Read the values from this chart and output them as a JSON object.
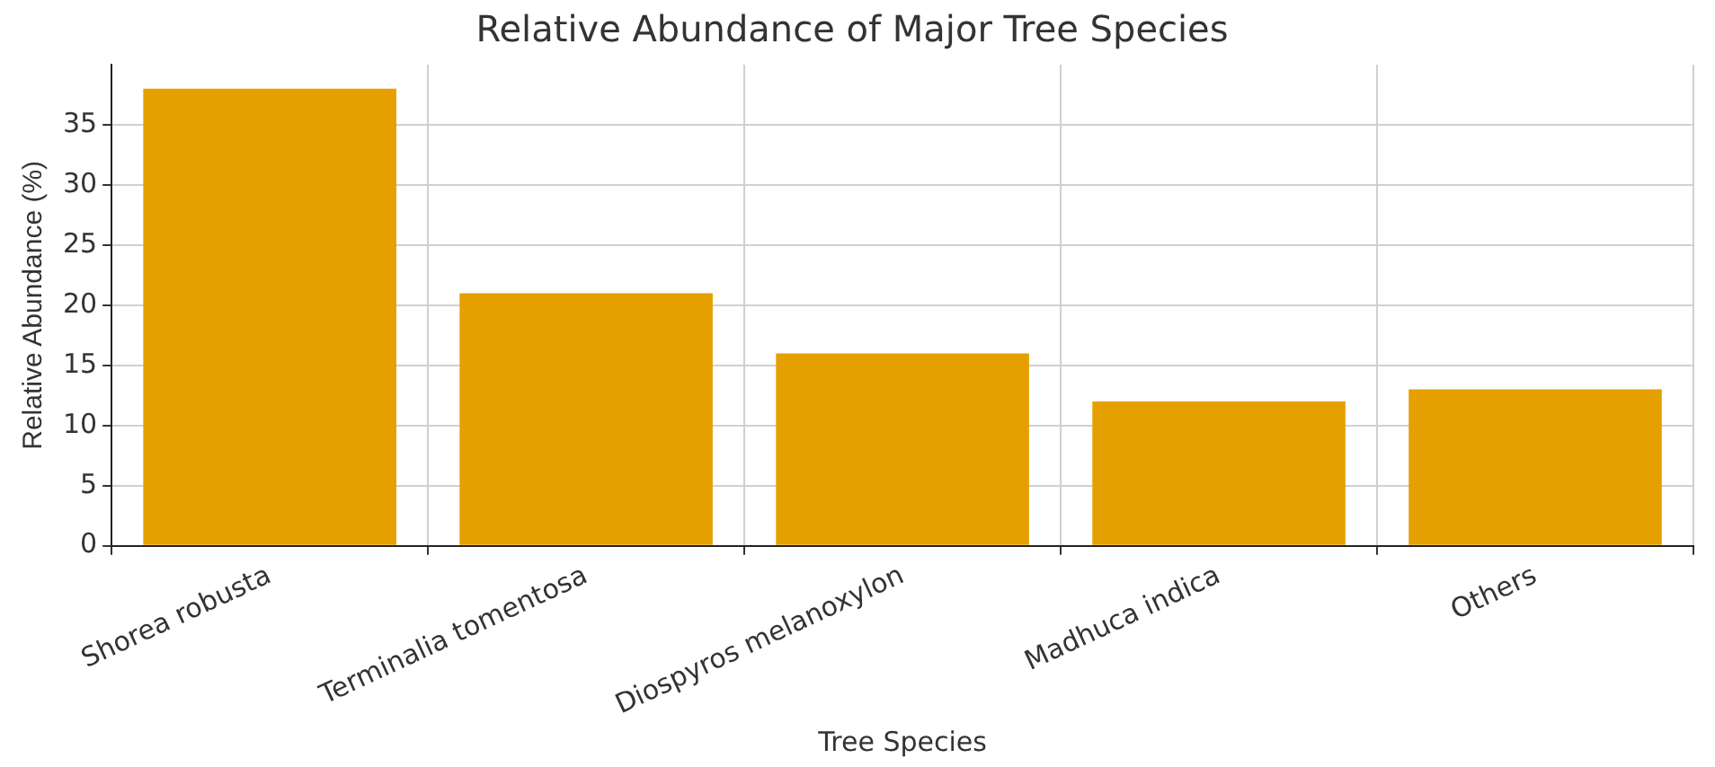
{
  "chart_data": {
    "type": "bar",
    "title": "Relative Abundance of Major Tree Species",
    "xlabel": "Tree Species",
    "ylabel": "Relative Abundance (%)",
    "categories": [
      "Shorea robusta",
      "Terminalia tomentosa",
      "Diospyros melanoxylon",
      "Madhuca indica",
      "Others"
    ],
    "values": [
      38,
      21,
      16,
      12,
      13
    ],
    "color": "#e5a000",
    "ylim": [
      0,
      40
    ],
    "yticks": [
      0,
      5,
      10,
      15,
      20,
      25,
      30,
      35
    ],
    "grid": true
  }
}
